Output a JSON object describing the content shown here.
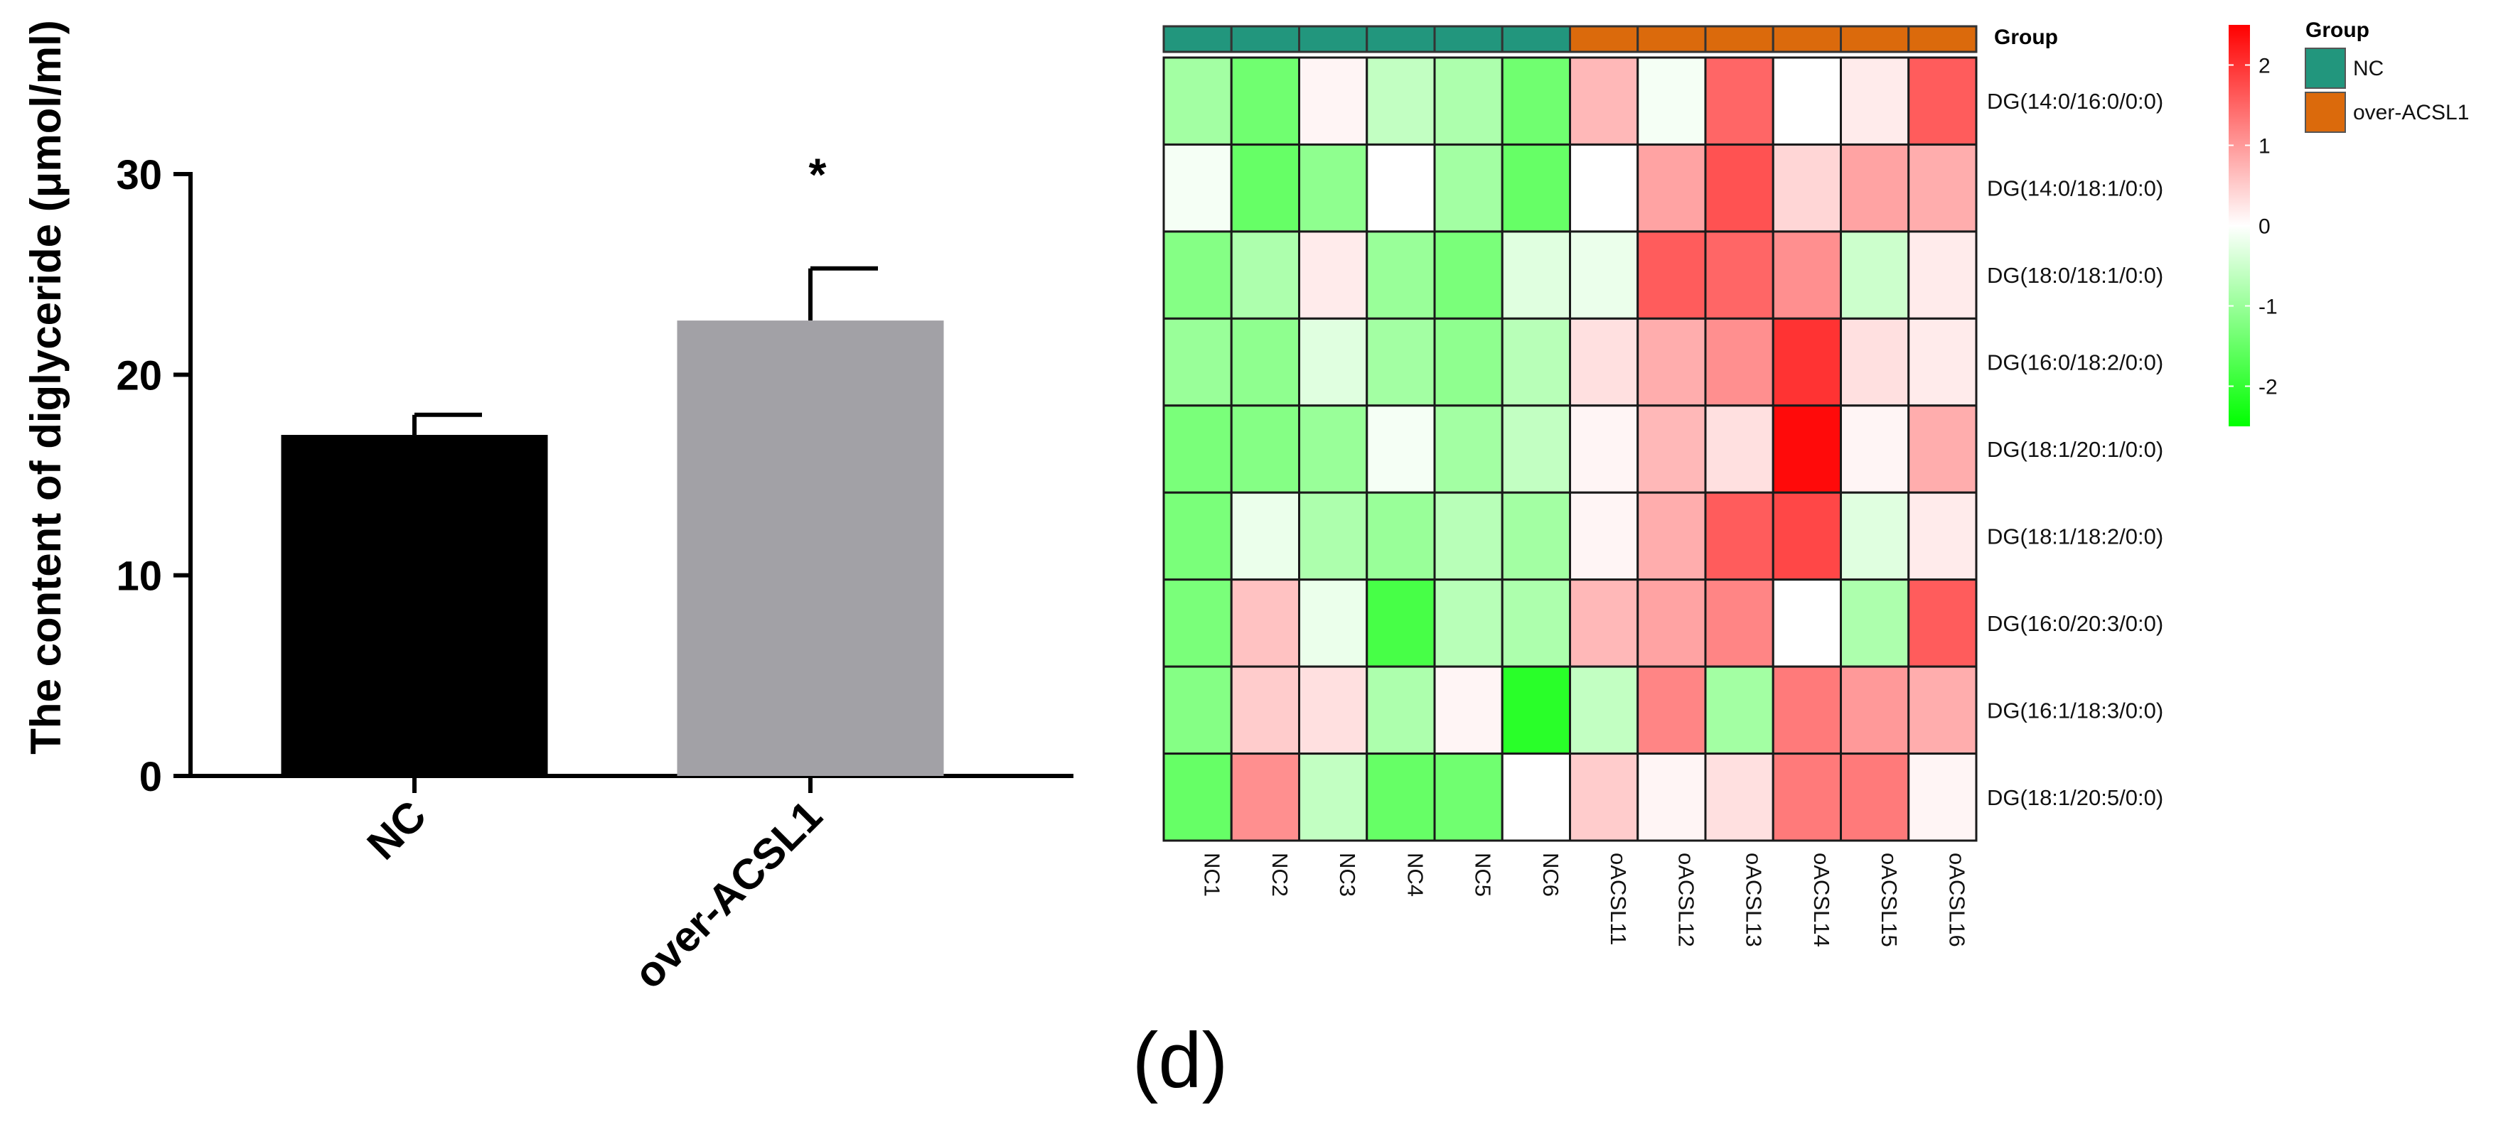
{
  "chart_data": [
    {
      "type": "bar",
      "ylabel": "The content of diglyceride (μmol/ml)",
      "xlabel": "",
      "categories": [
        "NC",
        "over-ACSL1"
      ],
      "values": [
        17.0,
        22.7
      ],
      "errors": [
        1.0,
        2.6
      ],
      "significance": [
        "",
        "*"
      ],
      "bar_colors": [
        "#000000",
        "#a2a1a6"
      ],
      "ylim": [
        0,
        30
      ],
      "yticks": [
        "0",
        "10",
        "20",
        "30"
      ],
      "grid": false
    },
    {
      "type": "heatmap",
      "columns": [
        "NC1",
        "NC2",
        "NC3",
        "NC4",
        "NC5",
        "NC6",
        "oACSL11",
        "oACSL12",
        "oACSL13",
        "oACSL14",
        "oACSL15",
        "oACSL16"
      ],
      "rows": [
        "DG(14:0/16:0/0:0)",
        "DG(14:0/18:1/0:0)",
        "DG(18:0/18:1/0:0)",
        "DG(16:0/18:2/0:0)",
        "DG(18:1/20:1/0:0)",
        "DG(18:1/18:2/0:0)",
        "DG(16:0/20:3/0:0)",
        "DG(16:1/18:3/0:0)",
        "DG(18:1/20:5/0:0)"
      ],
      "values": [
        [
          -0.9,
          -1.4,
          0.1,
          -0.6,
          -0.8,
          -1.4,
          0.7,
          -0.1,
          1.5,
          0.0,
          0.2,
          1.6
        ],
        [
          -0.1,
          -1.5,
          -1.1,
          0.0,
          -0.9,
          -1.5,
          0.0,
          0.9,
          1.7,
          0.4,
          0.9,
          0.8
        ],
        [
          -1.2,
          -0.8,
          0.2,
          -1.0,
          -1.3,
          -0.3,
          -0.2,
          1.6,
          1.5,
          1.1,
          -0.5,
          0.2
        ],
        [
          -1.0,
          -1.1,
          -0.3,
          -0.9,
          -1.1,
          -0.7,
          0.3,
          0.8,
          1.1,
          2.0,
          0.3,
          0.2
        ],
        [
          -1.3,
          -1.2,
          -1.0,
          -0.1,
          -0.9,
          -0.6,
          0.1,
          0.7,
          0.3,
          2.4,
          0.1,
          0.8
        ],
        [
          -1.3,
          -0.2,
          -0.8,
          -1.0,
          -0.7,
          -0.9,
          0.1,
          0.8,
          1.6,
          1.8,
          -0.3,
          0.2
        ],
        [
          -1.3,
          0.6,
          -0.2,
          -1.8,
          -0.7,
          -0.8,
          0.7,
          0.9,
          1.2,
          0.0,
          -0.8,
          1.6
        ],
        [
          -1.2,
          0.5,
          0.3,
          -0.8,
          0.1,
          -2.1,
          -0.6,
          1.2,
          -0.9,
          1.3,
          1.0,
          0.8
        ],
        [
          -1.5,
          1.1,
          -0.6,
          -1.5,
          -1.4,
          0.0,
          0.5,
          0.1,
          0.3,
          1.3,
          1.3,
          0.1
        ]
      ],
      "group_track": {
        "label": "Group",
        "assignments": [
          "NC",
          "NC",
          "NC",
          "NC",
          "NC",
          "NC",
          "over-ACSL1",
          "over-ACSL1",
          "over-ACSL1",
          "over-ACSL1",
          "over-ACSL1",
          "over-ACSL1"
        ]
      },
      "legend_group": {
        "title": "Group",
        "entries": [
          {
            "name": "NC",
            "color": "#22967d"
          },
          {
            "name": "over-ACSL1",
            "color": "#db6a0c"
          }
        ]
      },
      "colorbar": {
        "min": -2.5,
        "max": 2.5,
        "ticks": [
          "2",
          "1",
          "0",
          "-1",
          "-2"
        ],
        "tick_values": [
          2,
          1,
          0,
          -1,
          -2
        ],
        "low_color": "#00ff00",
        "mid_color": "#ffffff",
        "high_color": "#ff0000"
      }
    }
  ],
  "panel_label": "(d)"
}
